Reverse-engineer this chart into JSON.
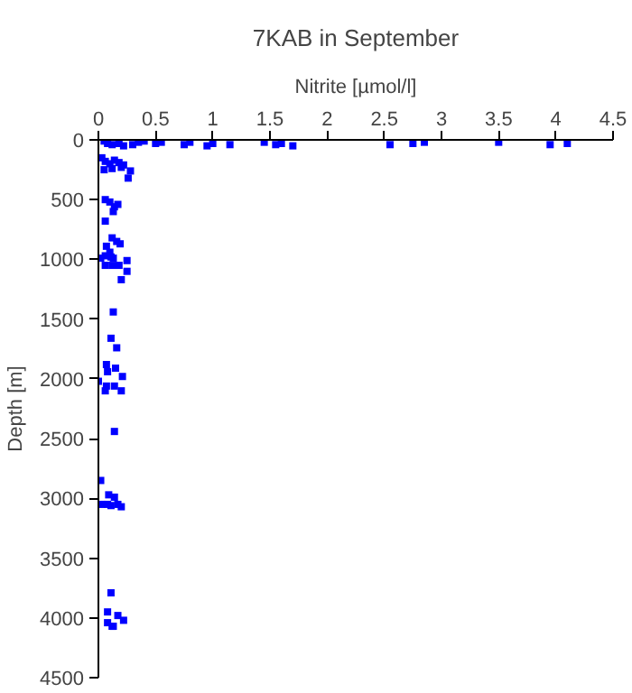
{
  "chart_data": {
    "type": "scatter",
    "title": "7KAB in September",
    "xlabel": "Nitrite [µmol/l]",
    "ylabel": "Depth [m]",
    "xlim": [
      0,
      4.5
    ],
    "xticks": [
      0,
      0.5,
      1,
      1.5,
      2,
      2.5,
      3,
      3.5,
      4,
      4.5
    ],
    "ylim": [
      4500,
      0
    ],
    "yticks": [
      0,
      500,
      1000,
      1500,
      2000,
      2500,
      3000,
      3500,
      4000,
      4500
    ],
    "grid": false,
    "marker": "square",
    "series": [
      {
        "color": "#0000ff",
        "x": [
          0.05,
          0.08,
          0.12,
          0.18,
          0.22,
          0.3,
          0.35,
          0.4,
          0.5,
          0.55,
          0.75,
          0.8,
          0.95,
          1.0,
          1.15,
          1.45,
          1.55,
          1.6,
          1.7,
          2.55,
          2.75,
          2.85,
          3.5,
          3.95,
          4.1,
          0.03,
          0.06,
          0.1,
          0.14,
          0.18,
          0.22,
          0.05,
          0.12,
          0.2,
          0.28,
          0.26,
          0.06,
          0.1,
          0.14,
          0.17,
          0.13,
          0.06,
          0.12,
          0.16,
          0.19,
          0.07,
          0.1,
          0.02,
          0.06,
          0.11,
          0.13,
          0.25,
          0.06,
          0.12,
          0.18,
          0.25,
          0.2,
          0.13,
          0.11,
          0.16,
          0.07,
          0.15,
          0.21,
          0.08,
          0.0,
          0.07,
          0.14,
          0.06,
          0.2,
          0.14,
          0.02,
          0.09,
          0.14,
          0.03,
          0.08,
          0.11,
          0.17,
          0.2,
          0.11,
          0.08,
          0.17,
          0.22,
          0.08,
          0.13,
          0.12
        ],
        "values": [
          10,
          30,
          40,
          30,
          50,
          40,
          20,
          10,
          30,
          20,
          40,
          20,
          50,
          30,
          40,
          20,
          40,
          30,
          50,
          40,
          30,
          20,
          20,
          40,
          30,
          150,
          180,
          200,
          170,
          190,
          210,
          250,
          240,
          230,
          260,
          320,
          500,
          520,
          560,
          540,
          600,
          680,
          820,
          850,
          870,
          890,
          940,
          990,
          970,
          980,
          990,
          1010,
          1050,
          1050,
          1050,
          1100,
          1170,
          1440,
          1660,
          1740,
          1880,
          1910,
          1980,
          1940,
          2020,
          2060,
          2060,
          2100,
          2100,
          2440,
          2850,
          2970,
          2990,
          3050,
          3050,
          3060,
          3050,
          3070,
          3790,
          3950,
          3980,
          4020,
          4040,
          4070,
          4070
        ]
      }
    ]
  }
}
